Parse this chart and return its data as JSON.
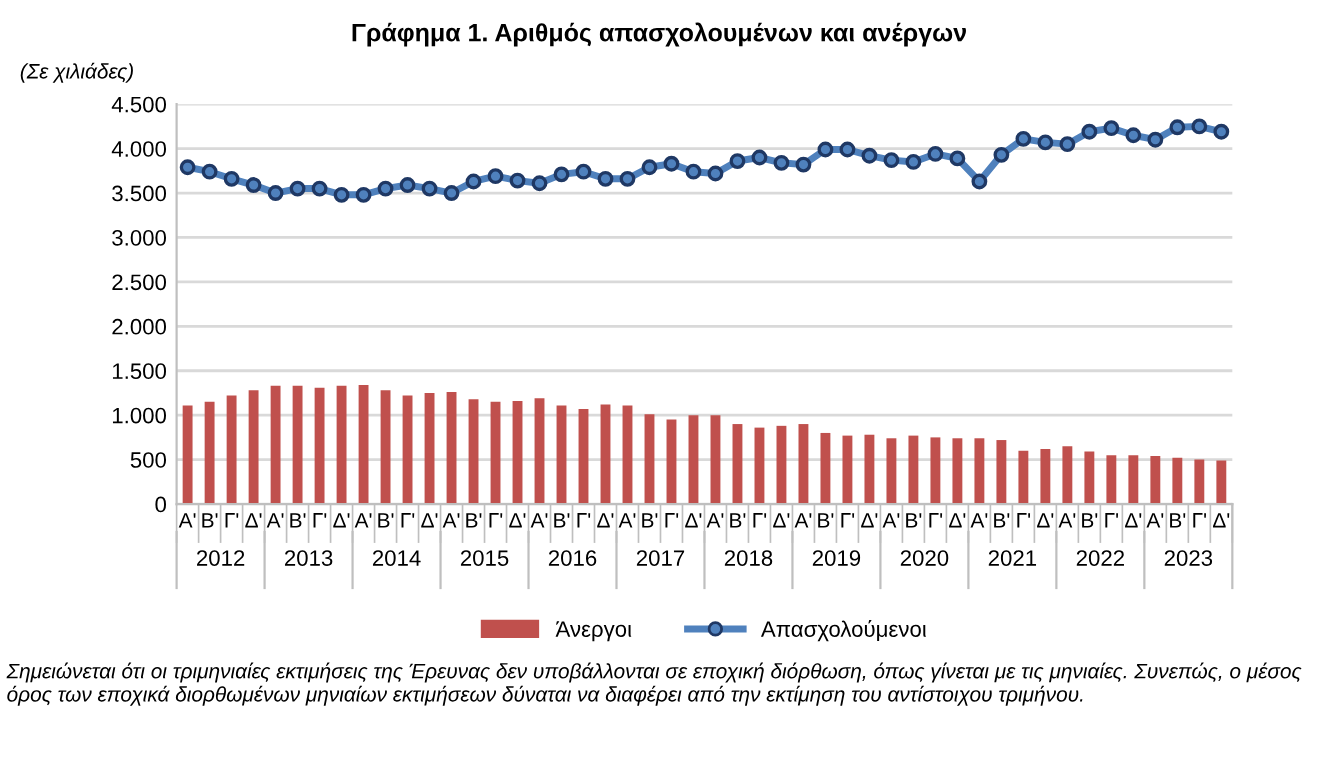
{
  "chart_data": {
    "type": "bar",
    "title": "Γράφημα 1. Αριθμός απασχολουμένων και ανέργων",
    "ylabel": "(Σε χιλιάδες)",
    "categories": [
      "Α'",
      "Β'",
      "Γ'",
      "Δ'",
      "Α'",
      "Β'",
      "Γ'",
      "Δ'",
      "Α'",
      "Β'",
      "Γ'",
      "Δ'",
      "Α'",
      "Β'",
      "Γ'",
      "Δ'",
      "Α'",
      "Β'",
      "Γ'",
      "Δ'",
      "Α'",
      "Β'",
      "Γ'",
      "Δ'",
      "Α'",
      "Β'",
      "Γ'",
      "Δ'",
      "Α'",
      "Β'",
      "Γ'",
      "Δ'",
      "Α'",
      "Β'",
      "Γ'",
      "Δ'",
      "Α'",
      "Β'",
      "Γ'",
      "Δ'",
      "Α'",
      "Β'",
      "Γ'",
      "Δ'",
      "Α'",
      "Β'",
      "Γ'",
      "Δ'"
    ],
    "series": [
      {
        "name": "Άνεργοι",
        "color": "#c0504d",
        "values": [
          1110,
          1150,
          1220,
          1280,
          1330,
          1330,
          1310,
          1330,
          1340,
          1280,
          1220,
          1250,
          1260,
          1180,
          1150,
          1160,
          1190,
          1110,
          1070,
          1120,
          1110,
          1010,
          950,
          1000,
          1000,
          900,
          860,
          880,
          900,
          800,
          770,
          780,
          740,
          770,
          750,
          740,
          740,
          720,
          600,
          620,
          650,
          590,
          550,
          550,
          540,
          520,
          500,
          490
        ]
      },
      {
        "name": "Απασχολούμενοι",
        "type": "line",
        "color": "#4f81bd",
        "marker": "circle",
        "values": [
          3790,
          3740,
          3660,
          3590,
          3500,
          3550,
          3550,
          3480,
          3480,
          3550,
          3590,
          3550,
          3500,
          3630,
          3690,
          3640,
          3610,
          3710,
          3740,
          3660,
          3660,
          3790,
          3830,
          3740,
          3720,
          3860,
          3900,
          3840,
          3820,
          3990,
          3990,
          3920,
          3870,
          3850,
          3940,
          3890,
          3630,
          3930,
          4110,
          4070,
          4050,
          4190,
          4230,
          4150,
          4100,
          4240,
          4250,
          4190
        ]
      }
    ],
    "ylim": [
      0,
      4500
    ],
    "yticks": [
      0,
      {
        "value": 500,
        "label": "500"
      },
      {
        "value": 1000,
        "label": "1.000"
      },
      {
        "value": 1500,
        "label": "1.500"
      },
      {
        "value": 2000,
        "label": "2.000"
      },
      {
        "value": 2500,
        "label": "2.500"
      },
      {
        "value": 3000,
        "label": "3.000"
      },
      {
        "value": 3500,
        "label": "3.500"
      },
      {
        "value": 4000,
        "label": "4.000"
      },
      {
        "value": 4500,
        "label": "4.500"
      }
    ],
    "grid": "y",
    "legend": "bottom",
    "annotations": [
      "2012",
      "2013",
      "2014",
      "2015",
      "2016",
      "2017",
      "2018",
      "2019",
      "2020",
      "2021",
      "2022",
      "2023",
      "Σημειώνεται ότι οι τριμηνιαίες εκτιμήσεις της Έρευνας δεν υποβάλλονται σε εποχική διόρθωση, όπως γίνεται με τις μηνιαίες. Συνεπώς, ο μέσος όρος των εποχικά διορθωμένων μηνιαίων εκτιμήσεων δύναται να διαφέρει από την εκτίμηση του αντίστοιχου τριμήνου."
    ]
  }
}
